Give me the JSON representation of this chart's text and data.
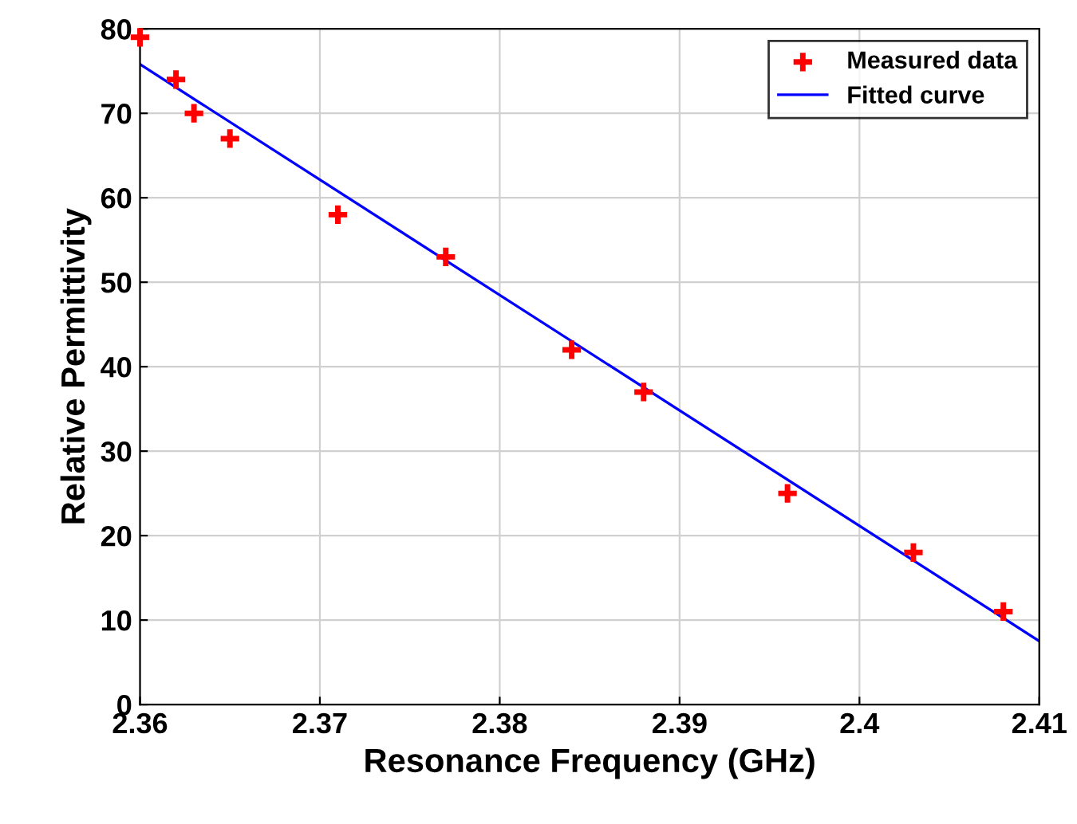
{
  "chart_data": {
    "type": "scatter",
    "xlabel": "Resonance Frequency (GHz)",
    "ylabel": "Relative Permittivity",
    "series": [
      {
        "name": "Measured data",
        "color": "#ff0000",
        "marker": "cross",
        "x": [
          2.36,
          2.362,
          2.363,
          2.365,
          2.371,
          2.377,
          2.384,
          2.388,
          2.396,
          2.403,
          2.408
        ],
        "values": [
          79,
          74,
          70,
          67,
          58,
          53,
          42,
          37,
          25,
          18,
          11
        ]
      },
      {
        "name": "Fitted curve",
        "type": "line",
        "color": "#0000ff",
        "marker": "none",
        "line_style": "solid",
        "x": [
          2.36,
          2.41
        ],
        "values": [
          75.8,
          7.5
        ]
      }
    ],
    "xlim": [
      2.36,
      2.41
    ],
    "xticks": [
      2.36,
      2.37,
      2.38,
      2.39,
      2.4,
      2.41
    ],
    "ylim": [
      0,
      80
    ],
    "yticks": [
      0,
      10,
      20,
      30,
      40,
      50,
      60,
      70,
      80
    ],
    "grid": true,
    "legend": "top right"
  }
}
